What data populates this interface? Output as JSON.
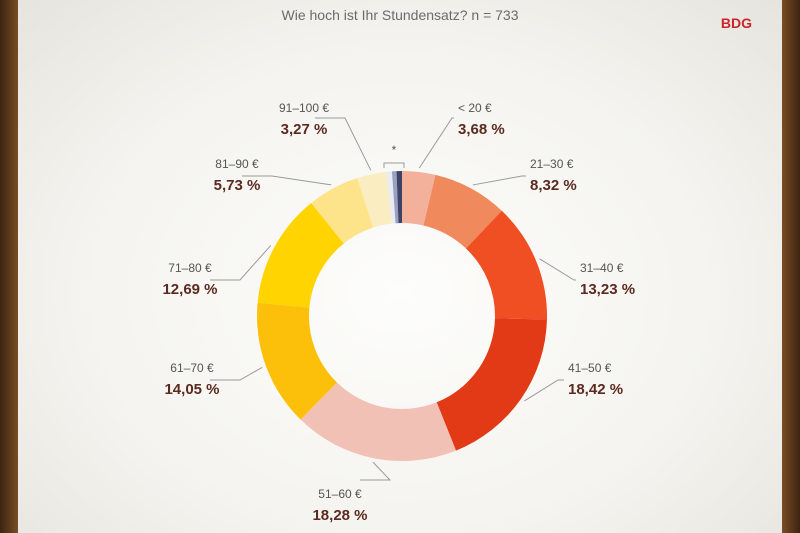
{
  "brand": "BDG",
  "chart_data": {
    "type": "pie",
    "style": "donut",
    "title": "Wie hoch ist Ihr Stundensatz?",
    "sample_size": "n = 733",
    "small_slice_marker": "*",
    "slices": [
      {
        "label": "< 20 €",
        "value": 3.68,
        "value_label": "3,68 %",
        "color": "#f3b09a"
      },
      {
        "label": "21–30 €",
        "value": 8.32,
        "value_label": "8,32 %",
        "color": "#f08a5d"
      },
      {
        "label": "31–40 €",
        "value": 13.23,
        "value_label": "13,23 %",
        "color": "#f04e23"
      },
      {
        "label": "41–50 €",
        "value": 18.42,
        "value_label": "18,42 %",
        "color": "#e23a16"
      },
      {
        "label": "51–60 €",
        "value": 18.28,
        "value_label": "18,28 %",
        "color": "#f1c1b5"
      },
      {
        "label": "61–70 €",
        "value": 14.05,
        "value_label": "14,05 %",
        "color": "#fdc00a"
      },
      {
        "label": "71–80 €",
        "value": 12.69,
        "value_label": "12,69 %",
        "color": "#ffd400"
      },
      {
        "label": "81–90 €",
        "value": 5.73,
        "value_label": "5,73 %",
        "color": "#fde38a"
      },
      {
        "label": "91–100 €",
        "value": 3.27,
        "value_label": "3,27 %",
        "color": "#fbedc2"
      },
      {
        "label": "",
        "value": 0.6,
        "value_label": "",
        "color": "#e9ecf3"
      },
      {
        "label": "",
        "value": 0.5,
        "value_label": "",
        "color": "#9aa0bf"
      },
      {
        "label": "",
        "value": 0.6,
        "value_label": "",
        "color": "#3d4366"
      }
    ]
  }
}
